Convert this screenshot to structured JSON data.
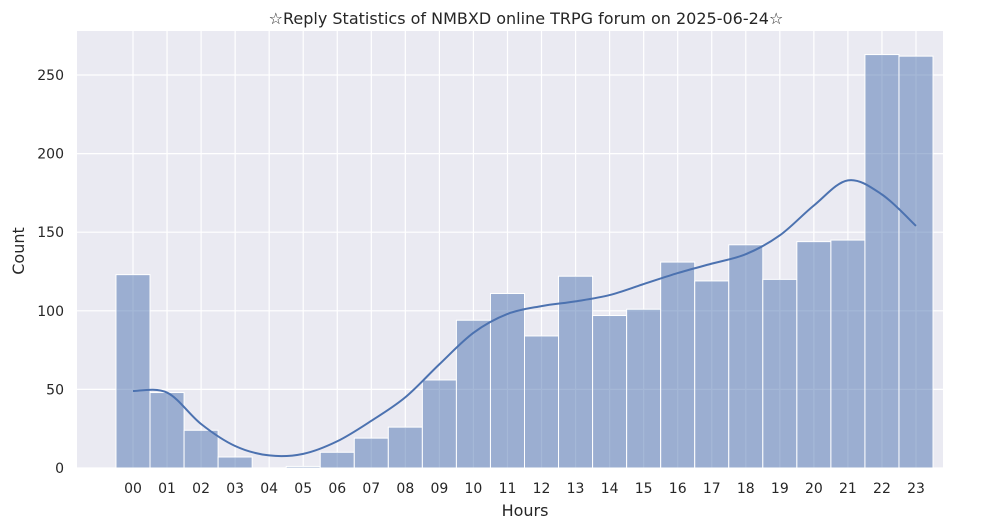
{
  "chart_data": {
    "type": "bar",
    "title": "☆Reply Statistics of NMBXD online TRPG forum on 2025-06-24☆",
    "xlabel": "Hours",
    "ylabel": "Count",
    "categories": [
      "00",
      "01",
      "02",
      "03",
      "04",
      "05",
      "06",
      "07",
      "08",
      "09",
      "10",
      "11",
      "12",
      "13",
      "14",
      "15",
      "16",
      "17",
      "18",
      "19",
      "20",
      "21",
      "22",
      "23"
    ],
    "values": [
      123,
      48,
      24,
      7,
      0,
      1,
      10,
      19,
      26,
      56,
      94,
      111,
      84,
      122,
      97,
      101,
      131,
      119,
      142,
      120,
      144,
      145,
      263,
      262
    ],
    "kde": [
      49,
      48,
      28,
      14,
      8,
      9,
      17,
      30,
      45,
      66,
      86,
      98,
      103,
      106,
      110,
      117,
      124,
      130,
      136,
      148,
      167,
      183,
      174,
      154
    ],
    "ylim": [
      0,
      278
    ],
    "yticks": [
      0,
      50,
      100,
      150,
      200,
      250
    ],
    "grid": true,
    "bar_color": "#4c72b0",
    "line_color": "#4c72b0",
    "background": "#eaeaf2"
  }
}
